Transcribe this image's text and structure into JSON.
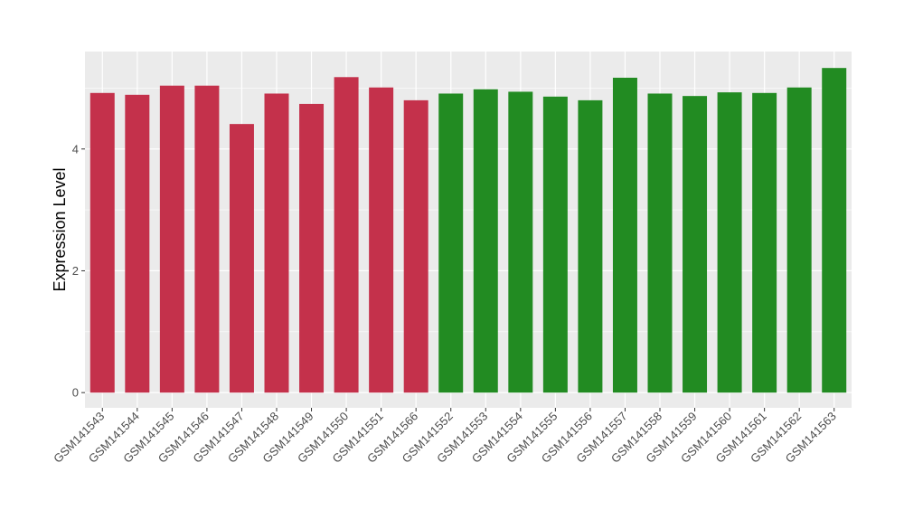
{
  "chart_data": {
    "type": "bar",
    "title": "",
    "xlabel": "",
    "ylabel": "Expression Level",
    "ylim": [
      -0.25,
      5.6
    ],
    "y_ticks": [
      0,
      2,
      4
    ],
    "grid": true,
    "categories": [
      "GSM141543",
      "GSM141544",
      "GSM141545",
      "GSM141546",
      "GSM141547",
      "GSM141548",
      "GSM141549",
      "GSM141550",
      "GSM141551",
      "GSM141566",
      "GSM141552",
      "GSM141553",
      "GSM141554",
      "GSM141555",
      "GSM141556",
      "GSM141557",
      "GSM141558",
      "GSM141559",
      "GSM141560",
      "GSM141561",
      "GSM141562",
      "GSM141563"
    ],
    "values": [
      4.92,
      4.89,
      5.04,
      5.04,
      4.41,
      4.91,
      4.74,
      5.18,
      5.01,
      4.8,
      4.91,
      4.98,
      4.94,
      4.86,
      4.8,
      5.17,
      4.91,
      4.87,
      4.93,
      4.92,
      5.01,
      5.33
    ],
    "bar_colors": [
      "#c4314b",
      "#c4314b",
      "#c4314b",
      "#c4314b",
      "#c4314b",
      "#c4314b",
      "#c4314b",
      "#c4314b",
      "#c4314b",
      "#c4314b",
      "#228b22",
      "#228b22",
      "#228b22",
      "#228b22",
      "#228b22",
      "#228b22",
      "#228b22",
      "#228b22",
      "#228b22",
      "#228b22",
      "#228b22",
      "#228b22"
    ],
    "panel_background": "#ebebeb",
    "grid_color": "#ffffff"
  }
}
